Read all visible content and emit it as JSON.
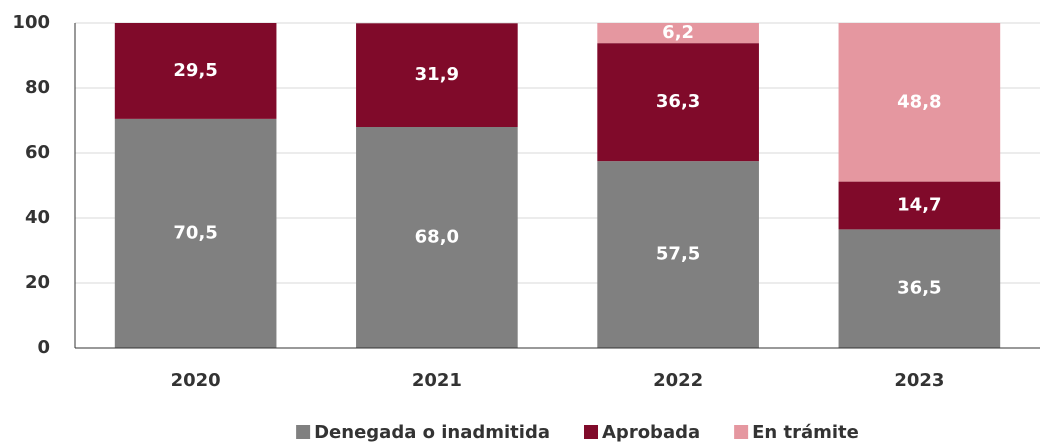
{
  "chart_data": {
    "type": "stacked_bar",
    "categories": [
      "2020",
      "2021",
      "2022",
      "2023"
    ],
    "series": [
      {
        "name": "Denegada o inadmitida",
        "color": "#808080",
        "values": [
          70.5,
          68.0,
          57.5,
          36.5
        ],
        "value_labels": [
          "70,5",
          "68,0",
          "57,5",
          "36,5"
        ]
      },
      {
        "name": "Aprobada",
        "color": "#800a2a",
        "values": [
          29.5,
          31.9,
          36.3,
          14.7
        ],
        "value_labels": [
          "29,5",
          "31,9",
          "36,3",
          "14,7"
        ]
      },
      {
        "name": "En trámite",
        "color": "#e597a0",
        "values": [
          null,
          null,
          6.2,
          48.8
        ],
        "value_labels": [
          null,
          null,
          "6,2",
          "48,8"
        ]
      }
    ],
    "ylim": [
      0,
      100
    ],
    "yticks": [
      0,
      20,
      40,
      60,
      80,
      100
    ],
    "grid": true,
    "legend": "bottom"
  }
}
